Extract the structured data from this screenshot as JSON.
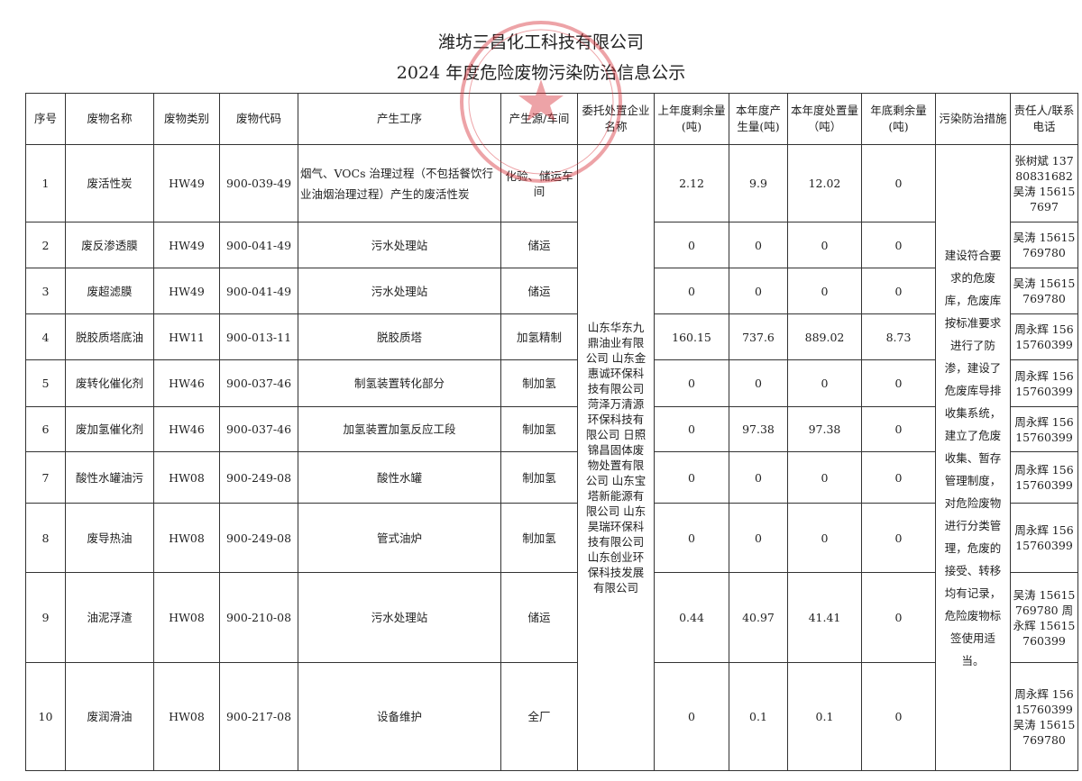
{
  "title": "潍坊三昌化工科技有限公司",
  "subtitle": "2024 年度危险废物污染防治信息公示",
  "stamp_color": "#d9363e",
  "headers": [
    "序号",
    "废物名称",
    "废物类别",
    "废物代码",
    "产生工序",
    "产生源/车间",
    "委托处置企业名称",
    "上年度剩余量(吨)",
    "本年度产生量(吨)",
    "本年度处置量（吨）",
    "年底剩余量(吨)",
    "污染防治措施",
    "责任人/联系电话"
  ],
  "disposal_companies": "山东华东九鼎油业有限公司 山东金惠诚环保科技有限公司 菏泽万清源环保科技有限公司 日照锦昌固体废物处置有限公司 山东宝塔新能源有限公司 山东昊瑞环保科技有限公司 山东创业环保科技发展有限公司",
  "measures": "建设符合要求的危废库，危废库按标准要求进行了防渗，建设了危废库导排收集系统，建立了危废收集、暂存管理制度，对危险废物进行分类管理，危废的接受、转移均有记录，危险废物标签使用适当。",
  "rows": [
    {
      "no": "1",
      "name": "废活性炭",
      "cat": "HW49",
      "code": "900-039-49",
      "process": "烟气、VOCs 治理过程（不包括餐饮行业油烟治理过程）产生的废活性炭",
      "source": "化验、储运车间",
      "prev": "2.12",
      "prod": "9.9",
      "disp": "12.02",
      "end": "0",
      "contact": "张树斌 13780831682 吴涛 156157697"
    },
    {
      "no": "2",
      "name": "废反渗透膜",
      "cat": "HW49",
      "code": "900-041-49",
      "process": "污水处理站",
      "source": "储运",
      "prev": "0",
      "prod": "0",
      "disp": "0",
      "end": "0",
      "contact": "吴涛 15615769780"
    },
    {
      "no": "3",
      "name": "废超滤膜",
      "cat": "HW49",
      "code": "900-041-49",
      "process": "污水处理站",
      "source": "储运",
      "prev": "0",
      "prod": "0",
      "disp": "0",
      "end": "0",
      "contact": "吴涛 15615769780"
    },
    {
      "no": "4",
      "name": "脱胶质塔底油",
      "cat": "HW11",
      "code": "900-013-11",
      "process": "脱胶质塔",
      "source": "加氢精制",
      "prev": "160.15",
      "prod": "737.6",
      "disp": "889.02",
      "end": "8.73",
      "contact": "周永辉 15615760399"
    },
    {
      "no": "5",
      "name": "废转化催化剂",
      "cat": "HW46",
      "code": "900-037-46",
      "process": "制氢装置转化部分",
      "source": "制加氢",
      "prev": "0",
      "prod": "0",
      "disp": "0",
      "end": "0",
      "contact": "周永辉 15615760399"
    },
    {
      "no": "6",
      "name": "废加氢催化剂",
      "cat": "HW46",
      "code": "900-037-46",
      "process": "加氢装置加氢反应工段",
      "source": "制加氢",
      "prev": "0",
      "prod": "97.38",
      "disp": "97.38",
      "end": "0",
      "contact": "周永辉 15615760399"
    },
    {
      "no": "7",
      "name": "酸性水罐油污",
      "cat": "HW08",
      "code": "900-249-08",
      "process": "酸性水罐",
      "source": "制加氢",
      "prev": "0",
      "prod": "0",
      "disp": "0",
      "end": "0",
      "contact": "周永辉 15615760399"
    },
    {
      "no": "8",
      "name": "废导热油",
      "cat": "HW08",
      "code": "900-249-08",
      "process": "管式油炉",
      "source": "制加氢",
      "prev": "0",
      "prod": "0",
      "disp": "0",
      "end": "0",
      "contact": "周永辉 15615760399"
    },
    {
      "no": "9",
      "name": "油泥浮渣",
      "cat": "HW08",
      "code": "900-210-08",
      "process": "污水处理站",
      "source": "储运",
      "prev": "0.44",
      "prod": "40.97",
      "disp": "41.41",
      "end": "0",
      "contact": "吴涛 15615769780 周永辉 15615760399"
    },
    {
      "no": "10",
      "name": "废润滑油",
      "cat": "HW08",
      "code": "900-217-08",
      "process": "设备维护",
      "source": "全厂",
      "prev": "0",
      "prod": "0.1",
      "disp": "0.1",
      "end": "0",
      "contact": "周永辉 15615760399 吴涛 15615769780"
    }
  ]
}
